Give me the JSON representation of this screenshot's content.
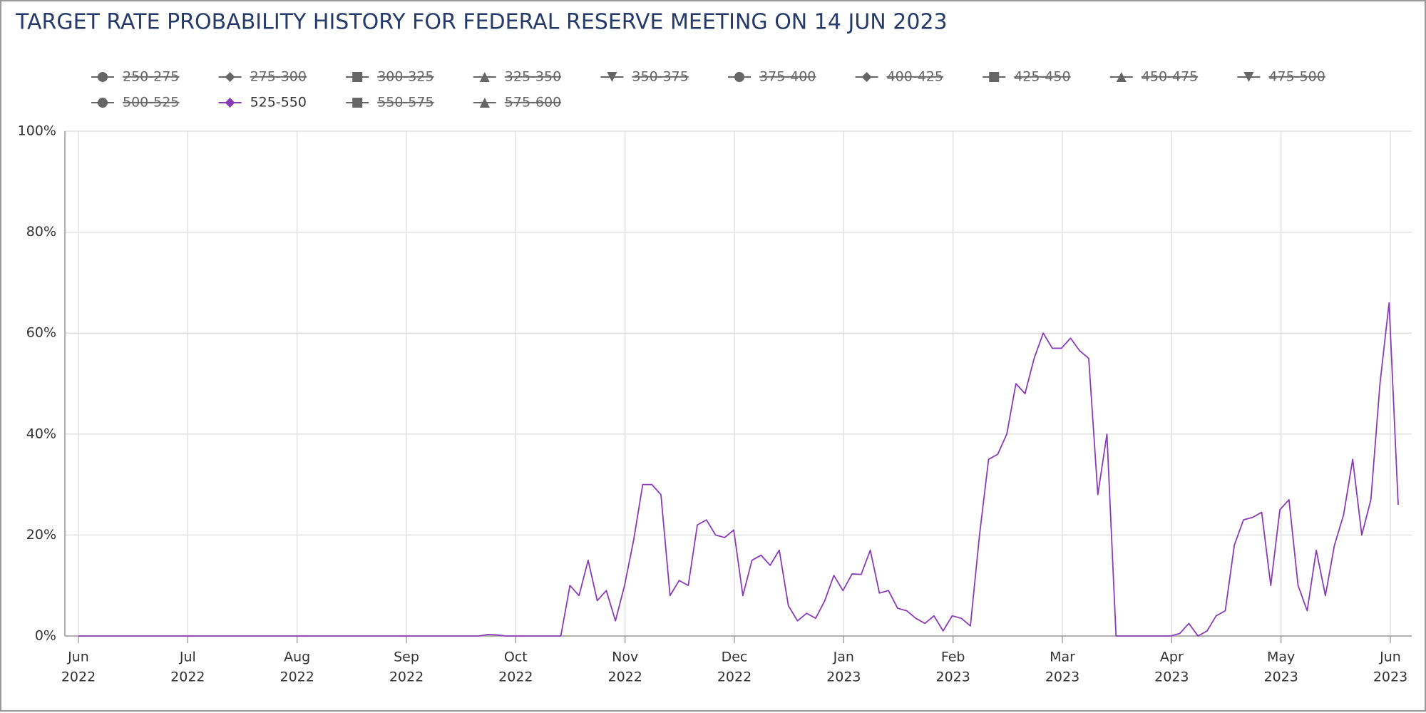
{
  "chart_data": {
    "type": "line",
    "title": "TARGET RATE PROBABILITY HISTORY FOR FEDERAL RESERVE MEETING ON 14 JUN 2023",
    "series": [
      {
        "name": "250-275",
        "symbol": "circle",
        "visible": false
      },
      {
        "name": "275-300",
        "symbol": "diamond",
        "visible": false
      },
      {
        "name": "300-325",
        "symbol": "square",
        "visible": false
      },
      {
        "name": "325-350",
        "symbol": "triangle",
        "visible": false
      },
      {
        "name": "350-375",
        "symbol": "triangle-down",
        "visible": false
      },
      {
        "name": "375-400",
        "symbol": "circle",
        "visible": false
      },
      {
        "name": "400-425",
        "symbol": "diamond",
        "visible": false
      },
      {
        "name": "425-450",
        "symbol": "square",
        "visible": false
      },
      {
        "name": "450-475",
        "symbol": "triangle",
        "visible": false
      },
      {
        "name": "475-500",
        "symbol": "triangle-down",
        "visible": false
      },
      {
        "name": "500-525",
        "symbol": "circle",
        "visible": false
      },
      {
        "name": "525-550",
        "symbol": "diamond",
        "visible": true,
        "color": "#8a3cb8",
        "values": [
          0,
          0,
          0,
          0,
          0,
          0,
          0,
          0,
          0,
          0,
          0,
          0,
          0,
          0,
          0,
          0,
          0,
          0,
          0,
          0,
          0,
          0,
          0,
          0,
          0,
          0,
          0,
          0,
          0,
          0,
          0,
          0,
          0,
          0,
          0,
          0,
          0,
          0,
          0,
          0,
          0,
          0,
          0,
          0,
          0,
          0.3,
          0.2,
          0,
          0,
          0,
          0,
          0,
          0,
          0,
          10,
          8,
          15,
          7,
          9,
          3,
          10,
          19,
          30,
          30,
          28,
          8,
          11,
          10,
          22,
          23,
          20,
          19.5,
          21,
          8,
          15,
          16,
          14,
          17,
          6,
          3,
          4.5,
          3.5,
          7,
          12,
          9,
          12.3,
          12.2,
          17,
          8.5,
          9,
          5.5,
          5,
          3.5,
          2.5,
          4,
          1,
          4,
          3.5,
          2,
          20,
          35,
          36,
          40,
          50,
          48,
          55,
          60,
          57,
          57,
          59,
          56.5,
          55,
          28,
          40,
          0,
          0,
          0,
          0,
          0,
          0,
          0,
          0.5,
          2.5,
          0,
          1,
          4,
          5,
          18,
          23,
          23.5,
          24.5,
          10,
          25,
          27,
          10,
          5,
          17,
          8,
          18,
          24,
          35,
          20,
          27,
          50,
          66,
          26
        ]
      },
      {
        "name": "550-575",
        "symbol": "square",
        "visible": false
      },
      {
        "name": "575-600",
        "symbol": "triangle",
        "visible": false
      }
    ],
    "xticks": [
      {
        "month": "Jun",
        "year": "2022"
      },
      {
        "month": "Jul",
        "year": "2022"
      },
      {
        "month": "Aug",
        "year": "2022"
      },
      {
        "month": "Sep",
        "year": "2022"
      },
      {
        "month": "Oct",
        "year": "2022"
      },
      {
        "month": "Nov",
        "year": "2022"
      },
      {
        "month": "Dec",
        "year": "2022"
      },
      {
        "month": "Jan",
        "year": "2023"
      },
      {
        "month": "Feb",
        "year": "2023"
      },
      {
        "month": "Mar",
        "year": "2023"
      },
      {
        "month": "Apr",
        "year": "2023"
      },
      {
        "month": "May",
        "year": "2023"
      },
      {
        "month": "Jun",
        "year": "2023"
      }
    ],
    "ylim": [
      0,
      100
    ],
    "yticks": [
      {
        "value": 0,
        "label": "0%"
      },
      {
        "value": 20,
        "label": "20%"
      },
      {
        "value": 40,
        "label": "40%"
      },
      {
        "value": 60,
        "label": "60%"
      },
      {
        "value": 80,
        "label": "80%"
      },
      {
        "value": 100,
        "label": "100%"
      }
    ],
    "grid": true
  }
}
